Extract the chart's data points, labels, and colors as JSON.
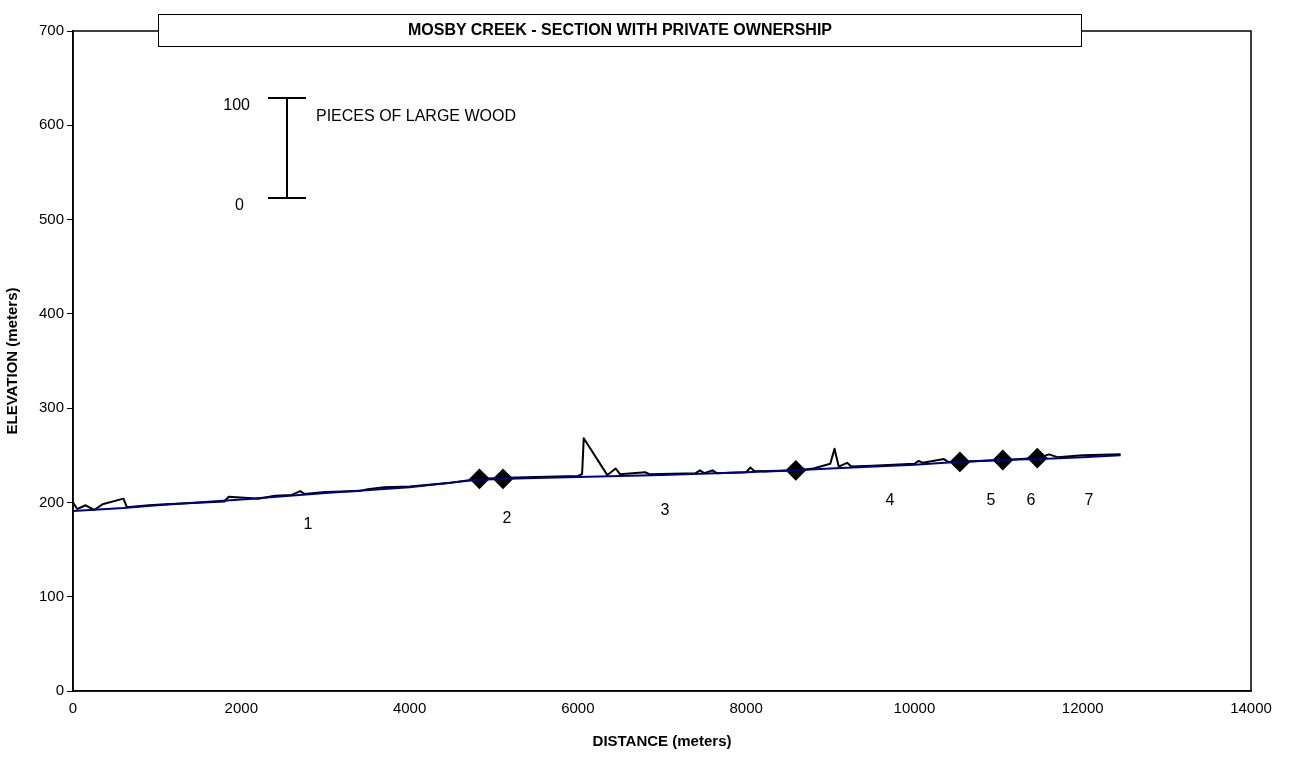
{
  "chart_data": {
    "type": "line",
    "title": "MOSBY CREEK - SECTION WITH PRIVATE OWNERSHIP",
    "xlabel": "DISTANCE (meters)",
    "ylabel": "ELEVATION (meters)",
    "xlim": [
      0,
      14000
    ],
    "xticks": [
      0,
      2000,
      4000,
      6000,
      8000,
      10000,
      12000,
      14000
    ],
    "ylim": [
      0,
      700
    ],
    "yticks": [
      0,
      100,
      200,
      300,
      400,
      500,
      600,
      700
    ],
    "grid": false,
    "legend": false,
    "series": [
      {
        "color": "#000080",
        "marker": "none",
        "x": [
          0,
          600,
          1000,
          2000,
          3000,
          4000,
          4800,
          5500,
          6000,
          7000,
          8000,
          8600,
          9000,
          10000,
          10500,
          11000,
          11500,
          12000,
          12450
        ],
        "values": [
          191,
          194,
          197,
          203,
          210,
          216,
          224,
          226,
          227,
          229,
          232,
          234,
          236,
          240,
          243,
          245,
          246,
          248,
          250
        ]
      },
      {
        "color": "#000000",
        "marker": "none",
        "x": [
          0,
          50,
          150,
          250,
          350,
          600,
          640,
          900,
          1100,
          1800,
          1850,
          2200,
          2400,
          2600,
          2700,
          2750,
          3000,
          3400,
          3500,
          3700,
          4000,
          4500,
          4830,
          5110,
          5500,
          6000,
          6050,
          6070,
          6350,
          6450,
          6500,
          6800,
          6850,
          7400,
          7450,
          7500,
          7600,
          7650,
          8000,
          8050,
          8100,
          8590,
          8800,
          9000,
          9050,
          9100,
          9200,
          9250,
          9500,
          10000,
          10050,
          10100,
          10350,
          10400,
          10540,
          11050,
          11460,
          11600,
          11700,
          12000,
          12450
        ],
        "values": [
          200,
          193,
          197,
          192,
          198,
          204,
          195,
          197,
          198,
          201,
          206,
          204,
          207,
          208,
          212,
          209,
          211,
          212,
          214,
          216,
          217,
          221,
          225,
          226,
          227,
          228,
          230,
          268,
          229,
          236,
          230,
          232,
          230,
          231,
          234,
          231,
          234,
          231,
          232,
          237,
          233,
          234,
          236,
          241,
          257,
          238,
          242,
          238,
          239,
          241,
          244,
          242,
          246,
          243,
          243,
          245,
          247,
          251,
          248,
          250,
          251
        ]
      },
      {
        "type": "scatter",
        "color": "#000000",
        "marker": "diamond",
        "x": [
          4830,
          5110,
          8590,
          10540,
          11050,
          11460
        ],
        "values": [
          225,
          225,
          234,
          243,
          245,
          247
        ]
      }
    ],
    "annotations": [
      "1",
      "2",
      "3",
      "4",
      "5",
      "6",
      "7",
      "100",
      "0",
      "PIECES OF LARGE WOOD"
    ]
  }
}
